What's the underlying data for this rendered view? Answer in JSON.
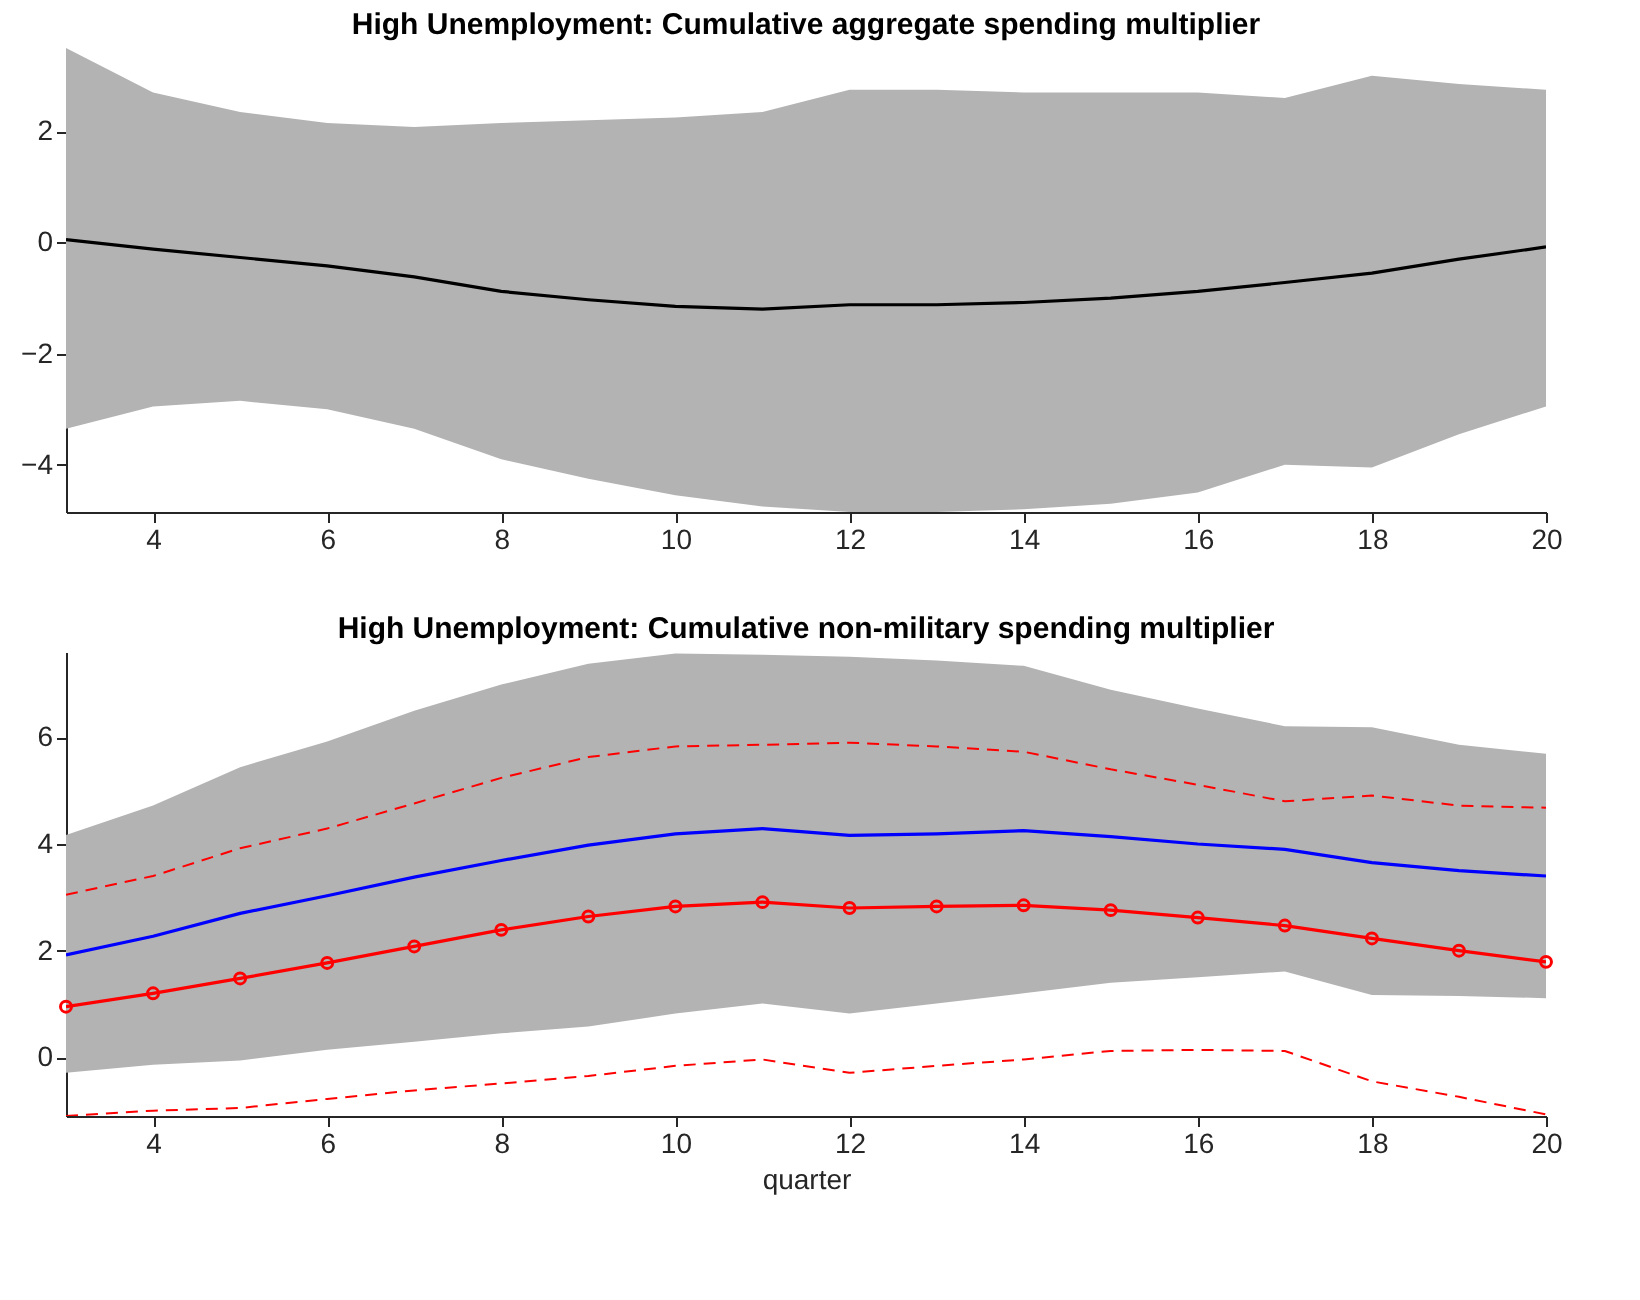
{
  "chart_data": [
    {
      "type": "line",
      "title": "High Unemployment: Cumulative aggregate spending multiplier",
      "x": [
        3,
        4,
        5,
        6,
        7,
        8,
        9,
        10,
        11,
        12,
        13,
        14,
        15,
        16,
        17,
        18,
        19,
        20
      ],
      "xlim": [
        3,
        20
      ],
      "xticks": [
        4,
        6,
        8,
        10,
        12,
        14,
        16,
        18,
        20
      ],
      "ylim": [
        -4.85,
        3.5
      ],
      "yticks": [
        -4,
        -2,
        0,
        2
      ],
      "grid": false,
      "series": [
        {
          "color": "#000000",
          "line_style": "solid",
          "marker": "none",
          "values": [
            0.05,
            -0.12,
            -0.27,
            -0.42,
            -0.62,
            -0.88,
            -1.03,
            -1.15,
            -1.2,
            -1.12,
            -1.12,
            -1.08,
            -1.0,
            -0.88,
            -0.72,
            -0.55,
            -0.3,
            -0.08
          ],
          "lower": [
            -3.35,
            -2.95,
            -2.85,
            -3.0,
            -3.35,
            -3.9,
            -4.25,
            -4.55,
            -4.75,
            -4.85,
            -4.85,
            -4.8,
            -4.7,
            -4.5,
            -4.0,
            -4.05,
            -3.45,
            -2.95
          ],
          "upper": [
            3.5,
            2.7,
            2.35,
            2.15,
            2.08,
            2.15,
            2.2,
            2.25,
            2.35,
            2.75,
            2.75,
            2.7,
            2.7,
            2.7,
            2.6,
            3.0,
            2.85,
            2.75
          ]
        }
      ]
    },
    {
      "type": "line",
      "title": "High Unemployment: Cumulative non-military spending multiplier",
      "xlabel": "quarter",
      "x": [
        3,
        4,
        5,
        6,
        7,
        8,
        9,
        10,
        11,
        12,
        13,
        14,
        15,
        16,
        17,
        18,
        19,
        20
      ],
      "xlim": [
        3,
        20
      ],
      "xticks": [
        4,
        6,
        8,
        10,
        12,
        14,
        16,
        18,
        20
      ],
      "ylim": [
        -1.1,
        7.6
      ],
      "yticks": [
        0,
        2,
        4,
        6
      ],
      "grid": false,
      "series": [
        {
          "color": "#0000ff",
          "line_style": "solid",
          "marker": "none",
          "values": [
            1.92,
            2.27,
            2.7,
            3.03,
            3.38,
            3.69,
            3.98,
            4.19,
            4.29,
            4.16,
            4.19,
            4.25,
            4.14,
            4.0,
            3.9,
            3.65,
            3.5,
            3.4
          ],
          "lower": [
            -0.29,
            -0.14,
            -0.06,
            0.14,
            0.29,
            0.45,
            0.58,
            0.82,
            1.01,
            0.82,
            1.01,
            1.2,
            1.4,
            1.5,
            1.61,
            1.17,
            1.15,
            1.11
          ],
          "upper": [
            4.17,
            4.72,
            5.44,
            5.92,
            6.5,
            6.99,
            7.38,
            7.57,
            7.55,
            7.51,
            7.44,
            7.34,
            6.89,
            6.54,
            6.21,
            6.19,
            5.86,
            5.69
          ]
        },
        {
          "color": "#ff0000",
          "line_style": "dashed",
          "marker": "none",
          "values": [
            3.05,
            3.4,
            3.92,
            4.29,
            4.76,
            5.24,
            5.63,
            5.83,
            5.86,
            5.9,
            5.83,
            5.73,
            5.4,
            5.11,
            4.8,
            4.91,
            4.72,
            4.68
          ]
        },
        {
          "color": "#ff0000",
          "line_style": "dashed",
          "marker": "none",
          "values": [
            -1.1,
            -1.0,
            -0.95,
            -0.78,
            -0.62,
            -0.49,
            -0.35,
            -0.16,
            -0.04,
            -0.29,
            -0.16,
            -0.04,
            0.12,
            0.14,
            0.12,
            -0.45,
            -0.74,
            -1.07
          ]
        },
        {
          "color": "#ff0000",
          "line_style": "solid",
          "marker": "circle",
          "values": [
            0.95,
            1.2,
            1.48,
            1.77,
            2.08,
            2.39,
            2.64,
            2.83,
            2.91,
            2.8,
            2.83,
            2.85,
            2.76,
            2.62,
            2.47,
            2.23,
            2.0,
            1.79
          ]
        }
      ]
    }
  ]
}
